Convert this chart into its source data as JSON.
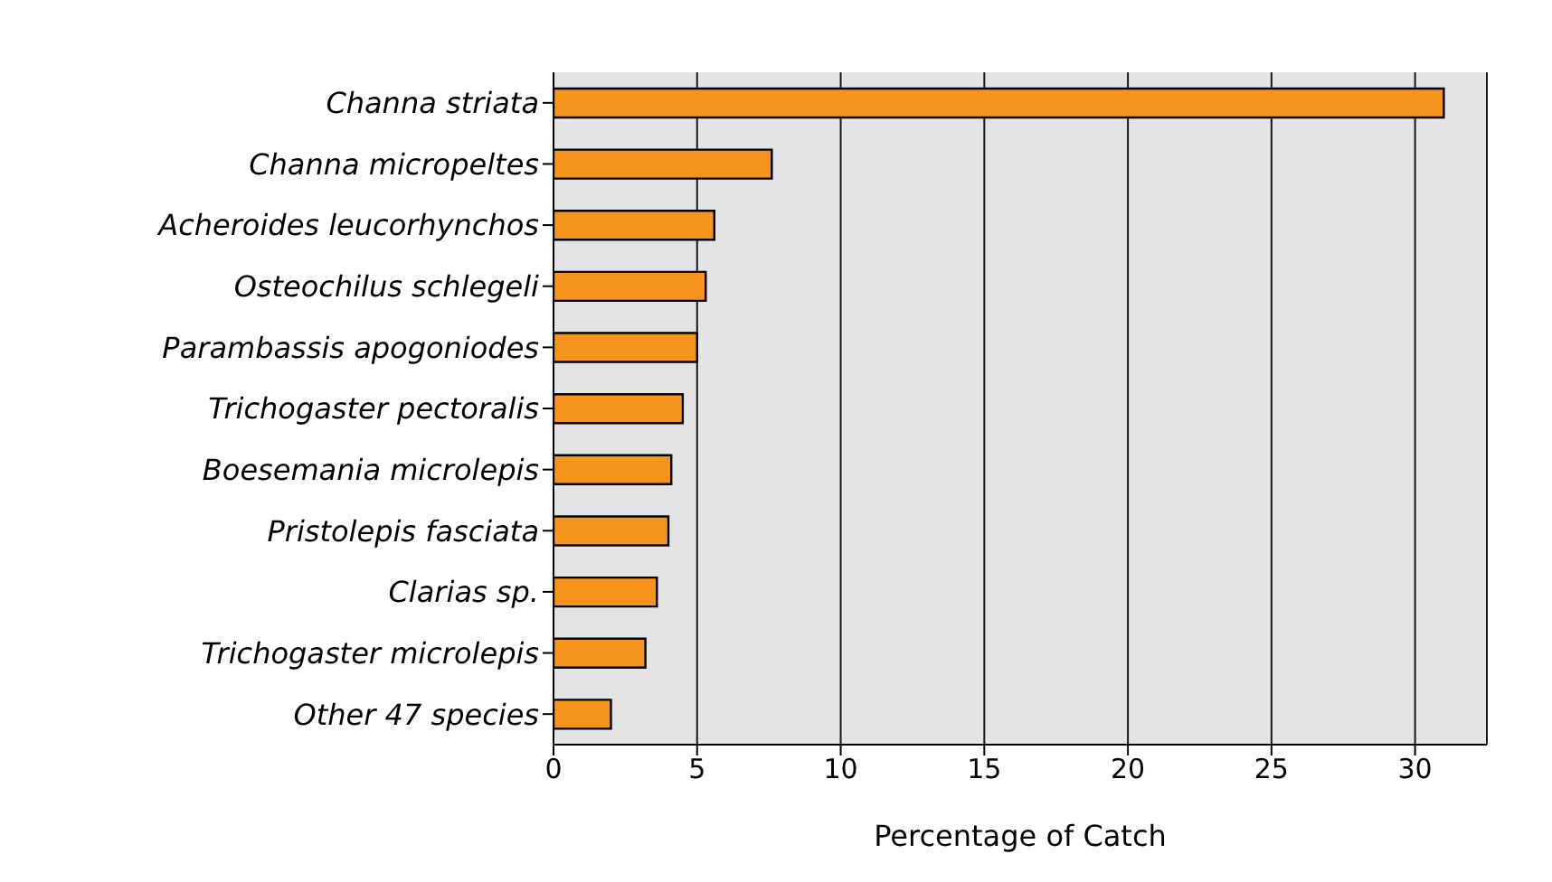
{
  "chart_data": {
    "type": "bar",
    "orientation": "horizontal",
    "xlabel": "Percentage of Catch",
    "categories": [
      "Channa striata",
      "Channa micropeltes",
      "Acheroides leucorhynchos",
      "Osteochilus schlegeli",
      "Parambassis apogoniodes",
      "Trichogaster pectoralis",
      "Boesemania microlepis",
      "Pristolepis fasciata",
      "Clarias sp.",
      "Trichogaster microlepis",
      "Other 47 species"
    ],
    "values": [
      31,
      7.6,
      5.6,
      5.3,
      5.0,
      4.5,
      4.1,
      4.0,
      3.6,
      3.2,
      2.0
    ],
    "color": "#f7941d",
    "xlim": [
      0,
      32.5
    ],
    "xticks": [
      0,
      5,
      10,
      15,
      20,
      25,
      30
    ],
    "grid": "x",
    "legend": false
  }
}
